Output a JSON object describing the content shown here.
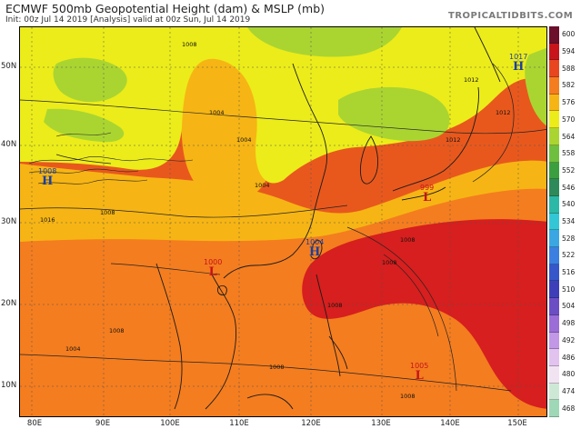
{
  "header": {
    "title": "ECMWF 500mb Geopotential Height (dam) & MSLP (mb)",
    "subtitle": "Init: 00z Jul 14 2019   [Analysis]   valid at 00z Sun, Jul 14 2019",
    "brand": "TROPICALTIDBITS.COM"
  },
  "axes": {
    "lat_labels": [
      "50N",
      "40N",
      "30N",
      "20N",
      "10N"
    ],
    "lon_labels": [
      "80E",
      "90E",
      "100E",
      "110E",
      "120E",
      "130E",
      "140E",
      "150E"
    ]
  },
  "colorbar": {
    "levels": [
      "600",
      "594",
      "588",
      "582",
      "576",
      "570",
      "564",
      "558",
      "552",
      "546",
      "540",
      "534",
      "528",
      "522",
      "516",
      "510",
      "504",
      "498",
      "492",
      "486",
      "480",
      "474",
      "468"
    ],
    "colors": [
      "#6b0f2b",
      "#c8151b",
      "#e8461f",
      "#f47d1f",
      "#f6b514",
      "#ecec1a",
      "#aad531",
      "#6fbf3f",
      "#3c9f3f",
      "#2e8a5a",
      "#2bb8a6",
      "#33c7d6",
      "#3aa7e3",
      "#3b7fe0",
      "#3557c9",
      "#3e3fb8",
      "#6b4ec4",
      "#9b6dd6",
      "#c197e6",
      "#e2c3ef",
      "#f2e3f2",
      "#cde9d6",
      "#9fd8b6"
    ]
  },
  "pressure_systems": [
    {
      "type": "high",
      "letter": "H",
      "value": "1017"
    },
    {
      "type": "high",
      "letter": "H",
      "value": "1008"
    },
    {
      "type": "high",
      "letter": "H",
      "value": "1004"
    },
    {
      "type": "low",
      "letter": "L",
      "value": "999"
    },
    {
      "type": "low",
      "letter": "L",
      "value": "1000"
    },
    {
      "type": "low",
      "letter": "L",
      "value": "1005"
    }
  ],
  "isobar_labels": [
    "1004",
    "1004",
    "1008",
    "1008",
    "1008",
    "1012",
    "1008",
    "1008",
    "1008",
    "1016",
    "1004",
    "1008",
    "1008",
    "1004",
    "1012",
    "1012"
  ],
  "fill_colors": {
    "ocean_deep": "#d61f1e",
    "ocean_orange": "#e8581d",
    "orange": "#f47d1f",
    "amber": "#f6b514",
    "yellow": "#ecec1a",
    "light_green": "#aad531",
    "green": "#86c63c",
    "land_outline": "#1a1a1a"
  }
}
